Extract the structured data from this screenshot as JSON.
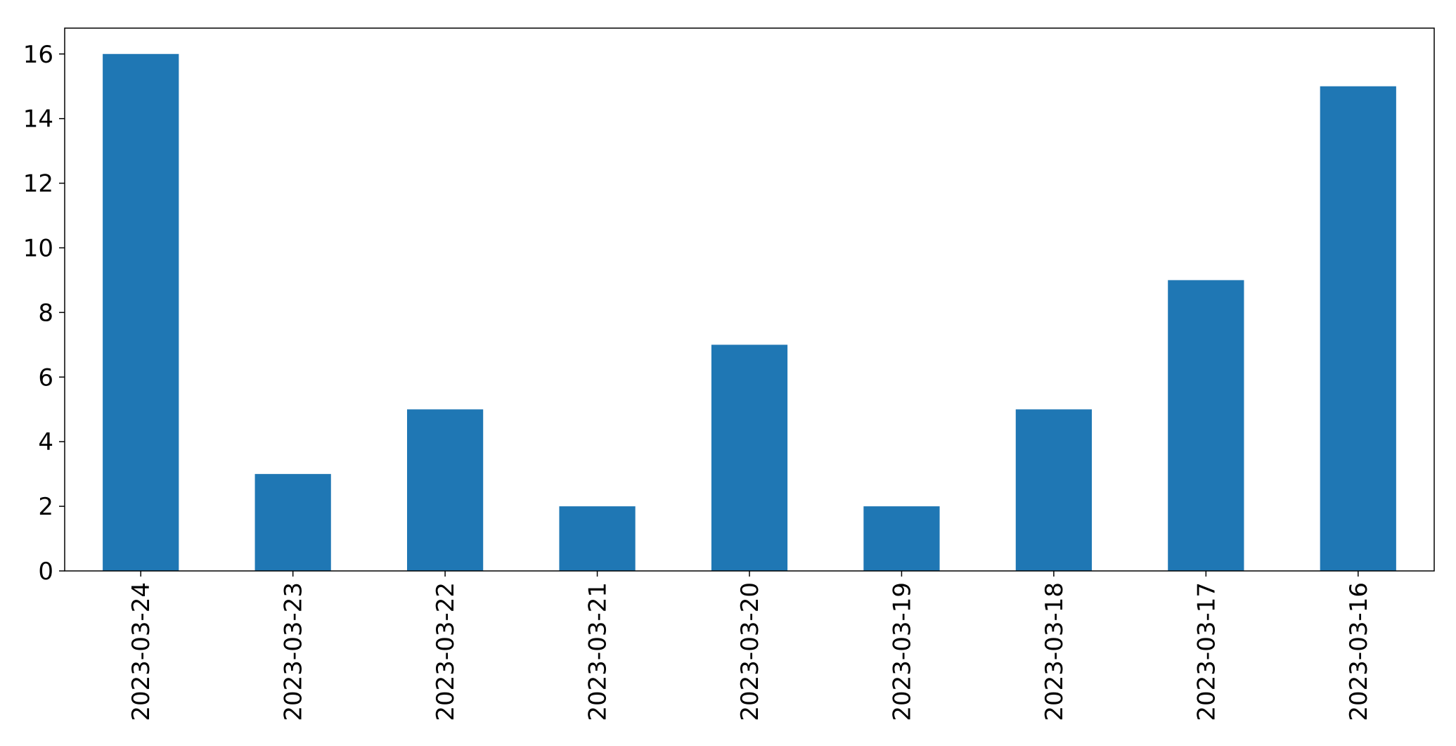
{
  "chart_data": {
    "type": "bar",
    "title": "",
    "xlabel": "",
    "ylabel": "",
    "categories": [
      "2023-03-24",
      "2023-03-23",
      "2023-03-22",
      "2023-03-21",
      "2023-03-20",
      "2023-03-19",
      "2023-03-18",
      "2023-03-17",
      "2023-03-16"
    ],
    "values": [
      16,
      3,
      5,
      2,
      7,
      2,
      5,
      9,
      15
    ],
    "ylim": [
      0,
      16.8
    ],
    "yticks": [
      0,
      2,
      4,
      6,
      8,
      10,
      12,
      14,
      16
    ],
    "grid": false,
    "legend": "none",
    "bar_color": "#1f77b4",
    "x_tick_rotation": "vertical"
  }
}
